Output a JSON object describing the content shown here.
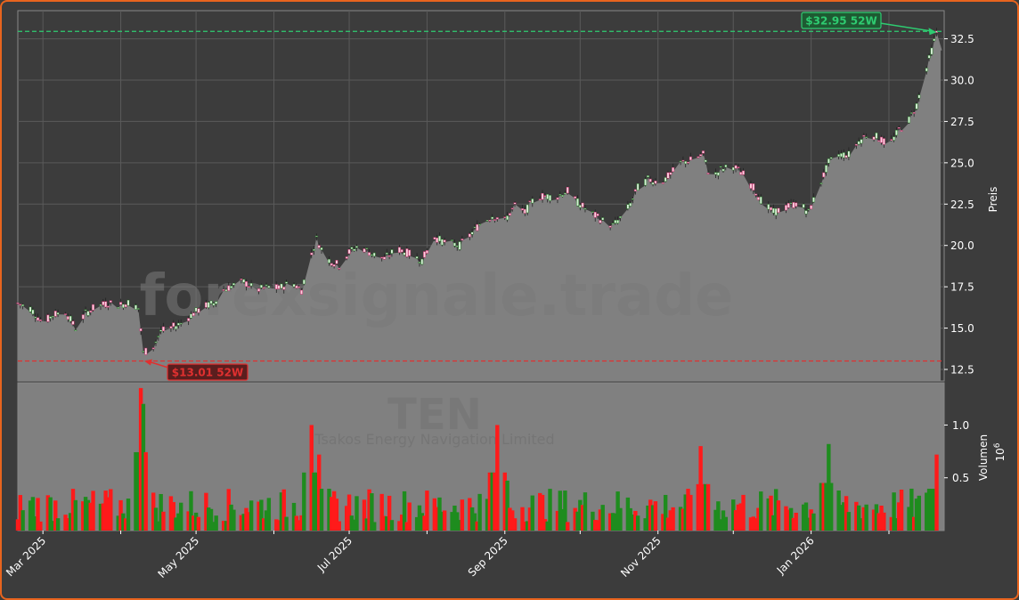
{
  "colors": {
    "background": "#3c3c3c",
    "frame": "#e8641e",
    "area": "#808080",
    "grid": "#5a5a5a",
    "up": "#1e8c1e",
    "down": "#ff1a1a",
    "high_line": "#2ecc71",
    "low_line": "#e03030",
    "text": "#ffffff"
  },
  "chart_data": [
    {
      "type": "candlestick",
      "title": "",
      "ylabel": "Preis",
      "ylim": [
        11.8,
        34.2
      ],
      "yticks": [
        "12.5",
        "15.0",
        "17.5",
        "20.0",
        "22.5",
        "25.0",
        "27.5",
        "30.0",
        "32.5"
      ],
      "xlim": [
        "2025-02-19",
        "2026-02-23"
      ],
      "grid": true,
      "watermark": "forexsignale.trade",
      "price_path": [
        [
          "2025-02-19",
          16.5
        ],
        [
          "2025-02-24",
          16.2
        ],
        [
          "2025-03-01",
          15.3
        ],
        [
          "2025-03-05",
          15.8
        ],
        [
          "2025-03-10",
          16.0
        ],
        [
          "2025-03-14",
          15.0
        ],
        [
          "2025-03-18",
          15.9
        ],
        [
          "2025-03-22",
          16.3
        ],
        [
          "2025-03-27",
          16.5
        ],
        [
          "2025-04-01",
          16.4
        ],
        [
          "2025-04-05",
          16.6
        ],
        [
          "2025-04-08",
          16.2
        ],
        [
          "2025-04-10",
          13.5
        ],
        [
          "2025-04-14",
          13.9
        ],
        [
          "2025-04-17",
          14.8
        ],
        [
          "2025-04-21",
          15.0
        ],
        [
          "2025-04-25",
          15.3
        ],
        [
          "2025-04-30",
          15.9
        ],
        [
          "2025-05-04",
          16.3
        ],
        [
          "2025-05-08",
          16.5
        ],
        [
          "2025-05-12",
          17.3
        ],
        [
          "2025-05-16",
          17.6
        ],
        [
          "2025-05-20",
          17.8
        ],
        [
          "2025-05-25",
          17.3
        ],
        [
          "2025-05-30",
          17.5
        ],
        [
          "2025-06-03",
          17.4
        ],
        [
          "2025-06-08",
          17.8
        ],
        [
          "2025-06-12",
          17.3
        ],
        [
          "2025-06-15",
          19.0
        ],
        [
          "2025-06-18",
          20.4
        ],
        [
          "2025-06-22",
          19.2
        ],
        [
          "2025-06-27",
          18.8
        ],
        [
          "2025-07-01",
          19.6
        ],
        [
          "2025-07-05",
          20.0
        ],
        [
          "2025-07-10",
          19.5
        ],
        [
          "2025-07-15",
          19.2
        ],
        [
          "2025-07-20",
          19.8
        ],
        [
          "2025-07-25",
          19.5
        ],
        [
          "2025-07-30",
          19.1
        ],
        [
          "2025-08-04",
          20.5
        ],
        [
          "2025-08-08",
          20.2
        ],
        [
          "2025-08-14",
          20.0
        ],
        [
          "2025-08-18",
          20.6
        ],
        [
          "2025-08-22",
          21.3
        ],
        [
          "2025-08-27",
          21.8
        ],
        [
          "2025-09-01",
          21.5
        ],
        [
          "2025-09-05",
          22.4
        ],
        [
          "2025-09-09",
          22.0
        ],
        [
          "2025-09-13",
          22.9
        ],
        [
          "2025-09-17",
          23.0
        ],
        [
          "2025-09-21",
          22.9
        ],
        [
          "2025-09-26",
          23.3
        ],
        [
          "2025-09-30",
          22.6
        ],
        [
          "2025-10-05",
          22.0
        ],
        [
          "2025-10-10",
          21.5
        ],
        [
          "2025-10-14",
          21.2
        ],
        [
          "2025-10-18",
          21.8
        ],
        [
          "2025-10-21",
          22.5
        ],
        [
          "2025-10-24",
          23.5
        ],
        [
          "2025-10-28",
          24.0
        ],
        [
          "2025-11-02",
          23.8
        ],
        [
          "2025-11-06",
          24.3
        ],
        [
          "2025-11-10",
          25.0
        ],
        [
          "2025-11-15",
          25.2
        ],
        [
          "2025-11-19",
          25.5
        ],
        [
          "2025-11-22",
          24.0
        ],
        [
          "2025-11-26",
          24.6
        ],
        [
          "2025-12-01",
          24.8
        ],
        [
          "2025-12-05",
          24.3
        ],
        [
          "2025-12-09",
          23.5
        ],
        [
          "2025-12-13",
          22.5
        ],
        [
          "2025-12-17",
          22.0
        ],
        [
          "2025-12-22",
          22.3
        ],
        [
          "2025-12-27",
          22.6
        ],
        [
          "2025-12-31",
          22.0
        ],
        [
          "2026-01-04",
          23.5
        ],
        [
          "2026-01-08",
          25.0
        ],
        [
          "2026-01-12",
          25.5
        ],
        [
          "2026-01-16",
          25.5
        ],
        [
          "2026-01-20",
          26.3
        ],
        [
          "2026-01-24",
          26.8
        ],
        [
          "2026-01-28",
          26.5
        ],
        [
          "2026-02-01",
          26.0
        ],
        [
          "2026-02-05",
          27.0
        ],
        [
          "2026-02-09",
          27.6
        ],
        [
          "2026-02-12",
          28.5
        ],
        [
          "2026-02-15",
          30.2
        ],
        [
          "2026-02-18",
          31.8
        ],
        [
          "2026-02-20",
          32.9
        ]
      ],
      "annotations": [
        {
          "label": "$32.95 52W",
          "date": "2026-02-20",
          "value": 32.95,
          "kind": "high"
        },
        {
          "label": "$13.01 52W",
          "date": "2025-04-10",
          "value": 13.01,
          "kind": "low"
        }
      ]
    },
    {
      "type": "bar",
      "ylabel": "Volumen",
      "yscale_label": "10^6",
      "ylim": [
        0,
        1.4
      ],
      "yticks": [
        "0.5",
        "1.0"
      ],
      "watermark_ticker": "TEN",
      "watermark_name": "Tsakos Energy Navigation Limited",
      "xticks": [
        "Mar 2025",
        "May 2025",
        "Jul 2025",
        "Sep 2025",
        "Nov 2025",
        "Jan 2026"
      ],
      "volume_peaks": [
        [
          "2025-04-09",
          1.35
        ],
        [
          "2025-04-10",
          1.2
        ],
        [
          "2025-06-16",
          1.0
        ],
        [
          "2025-06-19",
          0.72
        ],
        [
          "2025-08-29",
          1.0
        ],
        [
          "2025-08-30",
          0.86
        ],
        [
          "2025-11-18",
          0.8
        ],
        [
          "2026-01-08",
          0.82
        ],
        [
          "2026-02-20",
          0.72
        ]
      ]
    }
  ]
}
